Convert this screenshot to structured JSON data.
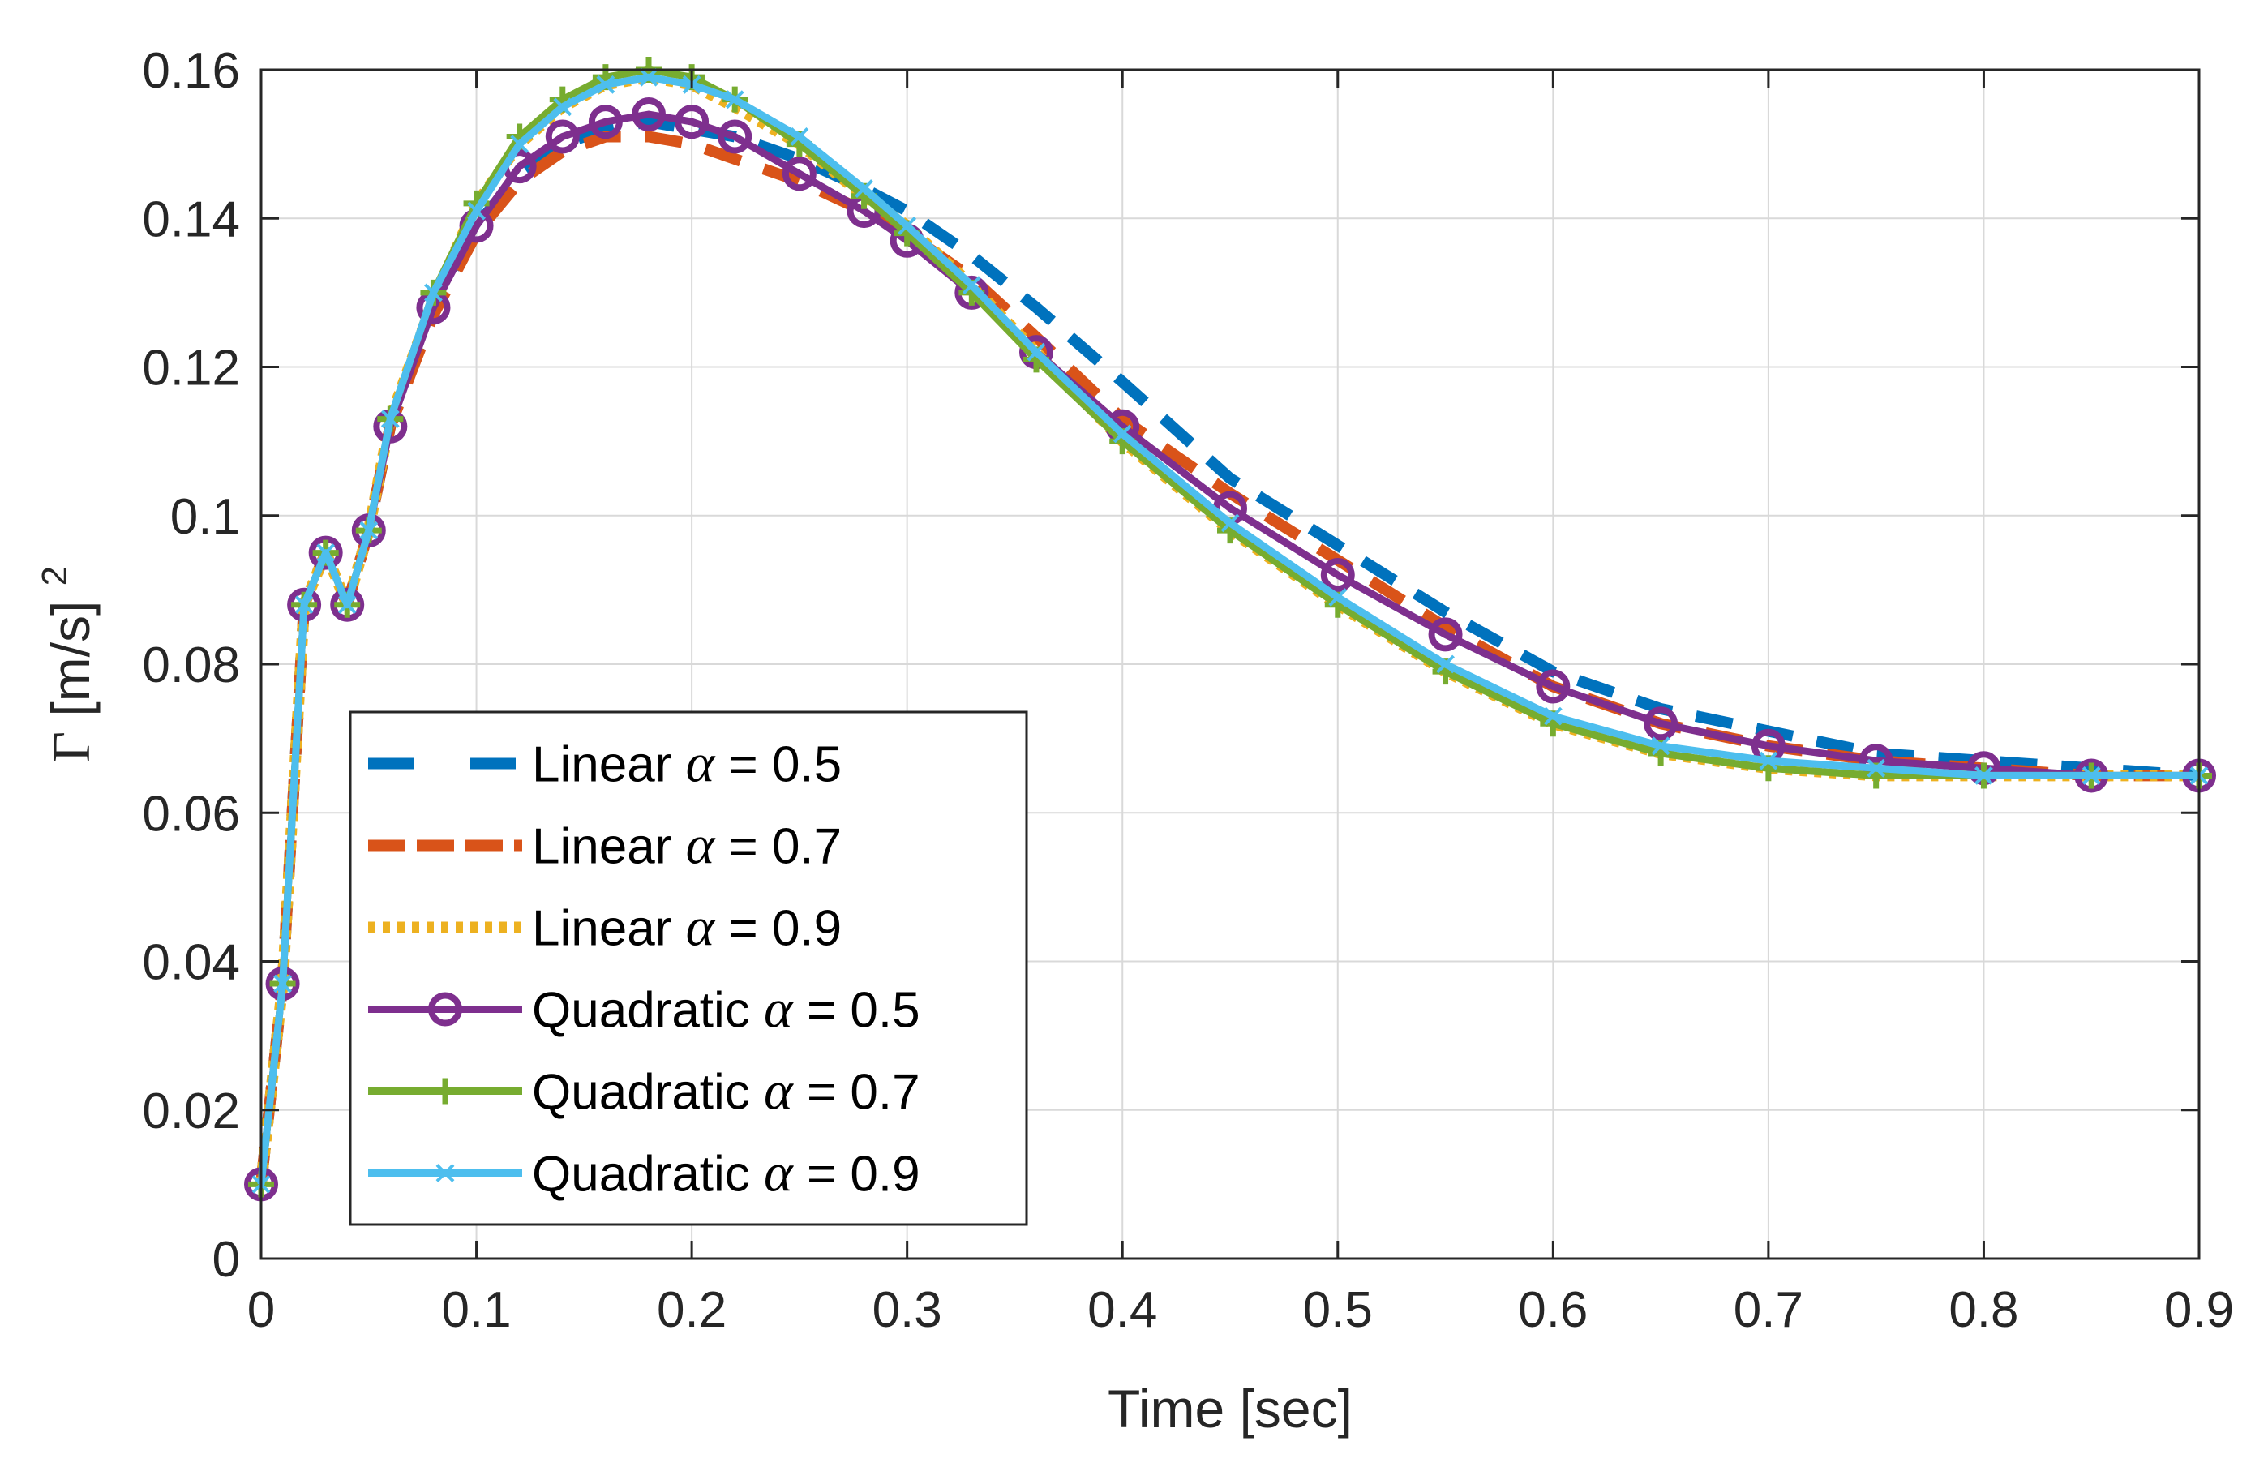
{
  "chart_data": {
    "type": "line",
    "xlabel": "Time [sec]",
    "ylabel": {
      "symbol": "Γ",
      "unit": "[m/s]",
      "exponent": "2"
    },
    "xlim": [
      0,
      0.9
    ],
    "ylim": [
      0,
      0.16
    ],
    "xticks": [
      "0",
      "0.1",
      "0.2",
      "0.3",
      "0.4",
      "0.5",
      "0.6",
      "0.7",
      "0.8",
      "0.9"
    ],
    "yticks": [
      "0",
      "0.02",
      "0.04",
      "0.06",
      "0.08",
      "0.1",
      "0.12",
      "0.14",
      "0.16"
    ],
    "grid": true,
    "legend_placement": "lower-left",
    "series": [
      {
        "name": "Linear α = 0.5",
        "label_prefix": "Linear",
        "alpha_symbol": "α",
        "label_suffix": " = 0.5",
        "color": "#0072BD",
        "style": "dashed",
        "marker": "none",
        "x": [
          0,
          0.01,
          0.02,
          0.03,
          0.04,
          0.05,
          0.06,
          0.08,
          0.1,
          0.12,
          0.14,
          0.16,
          0.18,
          0.2,
          0.22,
          0.25,
          0.28,
          0.3,
          0.33,
          0.36,
          0.4,
          0.45,
          0.5,
          0.55,
          0.6,
          0.65,
          0.7,
          0.75,
          0.8,
          0.85,
          0.9
        ],
        "y": [
          0.01,
          0.037,
          0.088,
          0.095,
          0.088,
          0.098,
          0.112,
          0.128,
          0.139,
          0.146,
          0.15,
          0.152,
          0.153,
          0.152,
          0.151,
          0.148,
          0.144,
          0.141,
          0.135,
          0.128,
          0.118,
          0.105,
          0.096,
          0.087,
          0.079,
          0.074,
          0.071,
          0.068,
          0.067,
          0.066,
          0.065
        ]
      },
      {
        "name": "Linear α = 0.7",
        "label_prefix": "Linear",
        "alpha_symbol": "α",
        "label_suffix": " = 0.7",
        "color": "#D95319",
        "style": "dashed",
        "marker": "none",
        "x": [
          0,
          0.01,
          0.02,
          0.03,
          0.04,
          0.05,
          0.06,
          0.08,
          0.1,
          0.12,
          0.14,
          0.16,
          0.18,
          0.2,
          0.22,
          0.25,
          0.28,
          0.3,
          0.33,
          0.36,
          0.4,
          0.45,
          0.5,
          0.55,
          0.6,
          0.65,
          0.7,
          0.75,
          0.8,
          0.85,
          0.9
        ],
        "y": [
          0.01,
          0.037,
          0.088,
          0.095,
          0.088,
          0.098,
          0.112,
          0.127,
          0.138,
          0.145,
          0.149,
          0.151,
          0.151,
          0.15,
          0.148,
          0.145,
          0.141,
          0.138,
          0.132,
          0.124,
          0.113,
          0.103,
          0.094,
          0.085,
          0.077,
          0.072,
          0.069,
          0.067,
          0.066,
          0.065,
          0.065
        ]
      },
      {
        "name": "Linear α = 0.9",
        "label_prefix": "Linear",
        "alpha_symbol": "α",
        "label_suffix": " = 0.9",
        "color": "#EDB120",
        "style": "dotted",
        "marker": "none",
        "x": [
          0,
          0.01,
          0.02,
          0.03,
          0.04,
          0.05,
          0.06,
          0.08,
          0.1,
          0.12,
          0.14,
          0.16,
          0.18,
          0.2,
          0.22,
          0.25,
          0.28,
          0.3,
          0.33,
          0.36,
          0.4,
          0.45,
          0.5,
          0.55,
          0.6,
          0.65,
          0.7,
          0.75,
          0.8,
          0.85,
          0.9
        ],
        "y": [
          0.01,
          0.037,
          0.088,
          0.095,
          0.088,
          0.098,
          0.113,
          0.129,
          0.142,
          0.15,
          0.155,
          0.158,
          0.159,
          0.158,
          0.155,
          0.15,
          0.143,
          0.139,
          0.131,
          0.122,
          0.11,
          0.098,
          0.088,
          0.079,
          0.072,
          0.068,
          0.066,
          0.065,
          0.065,
          0.065,
          0.065
        ]
      },
      {
        "name": "Quadratic α = 0.5",
        "label_prefix": "Quadratic",
        "alpha_symbol": "α",
        "label_suffix": " = 0.5",
        "color": "#7E2F8E",
        "style": "solid",
        "marker": "circle",
        "x": [
          0,
          0.01,
          0.02,
          0.03,
          0.04,
          0.05,
          0.06,
          0.08,
          0.1,
          0.12,
          0.14,
          0.16,
          0.18,
          0.2,
          0.22,
          0.25,
          0.28,
          0.3,
          0.33,
          0.36,
          0.4,
          0.45,
          0.5,
          0.55,
          0.6,
          0.65,
          0.7,
          0.75,
          0.8,
          0.85,
          0.9
        ],
        "y": [
          0.01,
          0.037,
          0.088,
          0.095,
          0.088,
          0.098,
          0.112,
          0.128,
          0.139,
          0.147,
          0.151,
          0.153,
          0.154,
          0.153,
          0.151,
          0.146,
          0.141,
          0.137,
          0.13,
          0.122,
          0.112,
          0.101,
          0.092,
          0.084,
          0.077,
          0.072,
          0.069,
          0.067,
          0.066,
          0.065,
          0.065
        ]
      },
      {
        "name": "Quadratic α = 0.7",
        "label_prefix": "Quadratic",
        "alpha_symbol": "α",
        "label_suffix": " = 0.7",
        "color": "#77AC30",
        "style": "solid",
        "marker": "plus",
        "x": [
          0,
          0.01,
          0.02,
          0.03,
          0.04,
          0.05,
          0.06,
          0.08,
          0.1,
          0.12,
          0.14,
          0.16,
          0.18,
          0.2,
          0.22,
          0.25,
          0.28,
          0.3,
          0.33,
          0.36,
          0.4,
          0.45,
          0.5,
          0.55,
          0.6,
          0.65,
          0.7,
          0.75,
          0.8,
          0.85,
          0.9
        ],
        "y": [
          0.01,
          0.037,
          0.088,
          0.095,
          0.088,
          0.098,
          0.113,
          0.13,
          0.142,
          0.151,
          0.156,
          0.159,
          0.16,
          0.159,
          0.156,
          0.15,
          0.143,
          0.138,
          0.13,
          0.121,
          0.11,
          0.098,
          0.088,
          0.079,
          0.072,
          0.068,
          0.066,
          0.065,
          0.065,
          0.065,
          0.065
        ]
      },
      {
        "name": "Quadratic α = 0.9",
        "label_prefix": "Quadratic",
        "alpha_symbol": "α",
        "label_suffix": " = 0.9",
        "color": "#4DBEEE",
        "style": "solid",
        "marker": "x",
        "x": [
          0,
          0.01,
          0.02,
          0.03,
          0.04,
          0.05,
          0.06,
          0.08,
          0.1,
          0.12,
          0.14,
          0.16,
          0.18,
          0.2,
          0.22,
          0.25,
          0.28,
          0.3,
          0.33,
          0.36,
          0.4,
          0.45,
          0.5,
          0.55,
          0.6,
          0.65,
          0.7,
          0.75,
          0.8,
          0.85,
          0.9
        ],
        "y": [
          0.01,
          0.037,
          0.088,
          0.095,
          0.088,
          0.098,
          0.113,
          0.13,
          0.141,
          0.15,
          0.155,
          0.158,
          0.159,
          0.158,
          0.156,
          0.151,
          0.144,
          0.139,
          0.131,
          0.122,
          0.111,
          0.099,
          0.089,
          0.08,
          0.073,
          0.069,
          0.067,
          0.066,
          0.065,
          0.065,
          0.065
        ]
      }
    ]
  }
}
